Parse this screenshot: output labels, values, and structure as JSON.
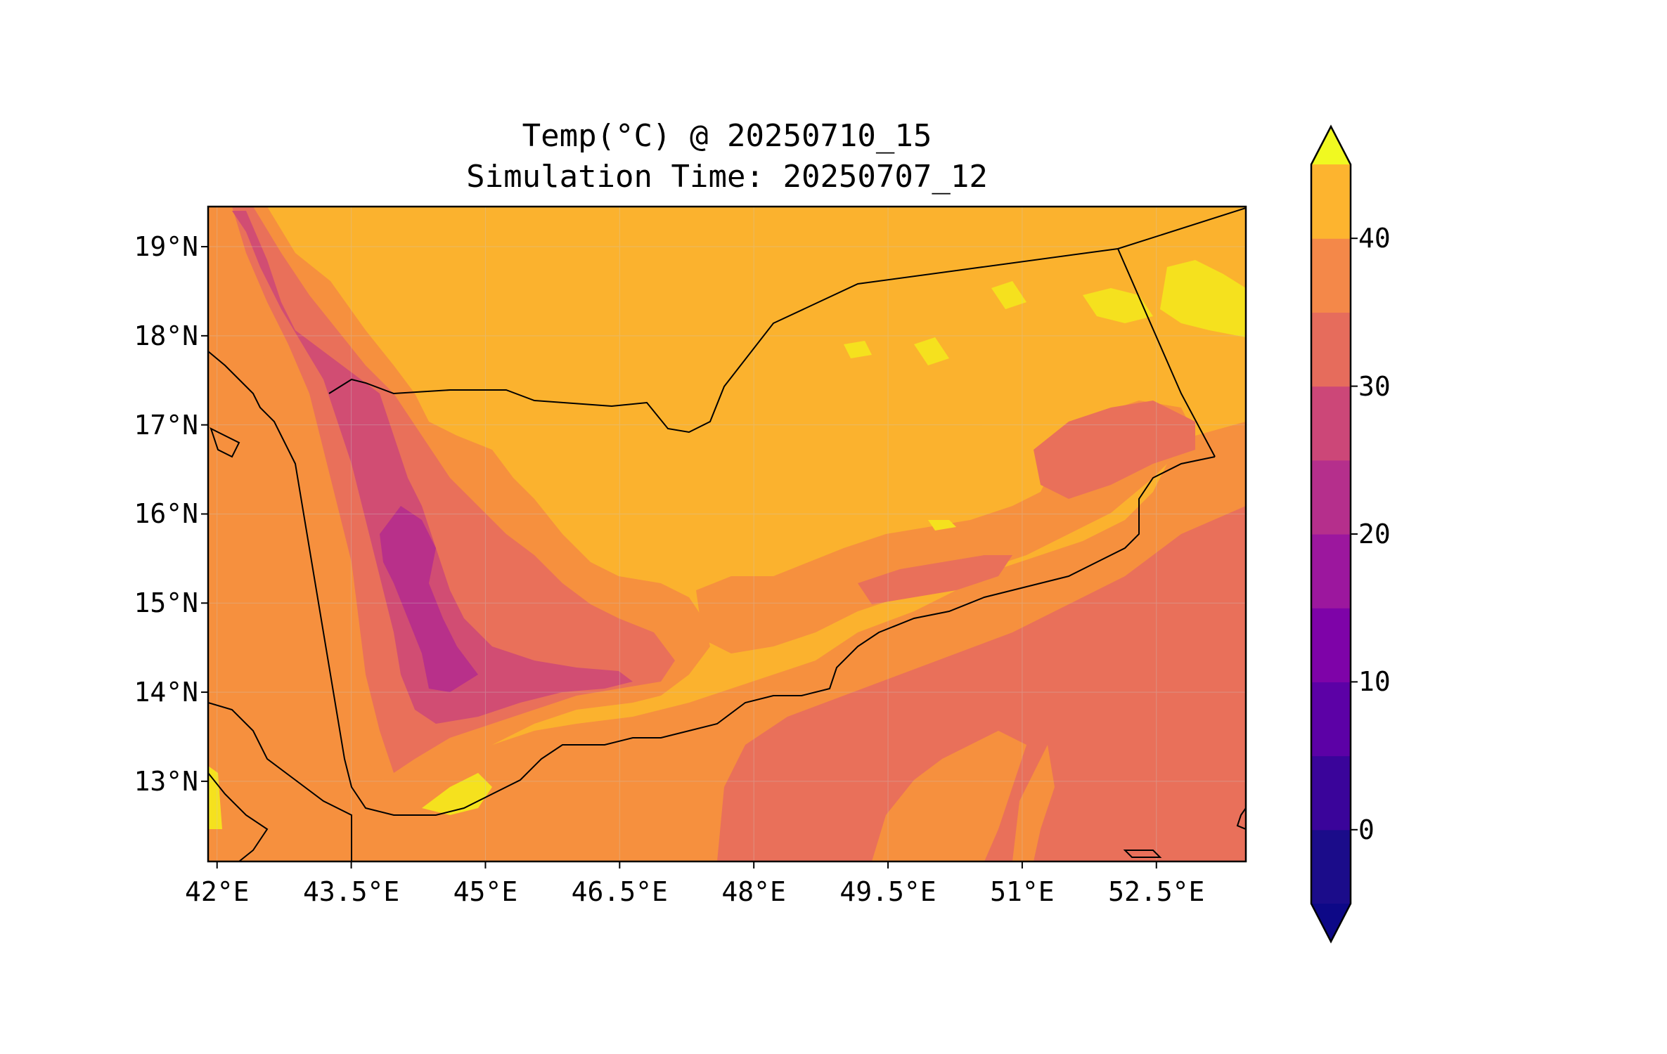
{
  "figure": {
    "title_line1": "Temp(°C) @ 20250710_15",
    "title_line2": "Simulation Time: 20250707_12"
  },
  "map": {
    "lon_range": [
      41.9,
      53.5
    ],
    "lat_range": [
      12.1,
      19.45
    ],
    "lat_ticks": [
      {
        "value": 19,
        "label": "19°N"
      },
      {
        "value": 18,
        "label": "18°N"
      },
      {
        "value": 17,
        "label": "17°N"
      },
      {
        "value": 16,
        "label": "16°N"
      },
      {
        "value": 15,
        "label": "15°N"
      },
      {
        "value": 14,
        "label": "14°N"
      },
      {
        "value": 13,
        "label": "13°N"
      }
    ],
    "lon_ticks": [
      {
        "value": 42,
        "label": "42°E"
      },
      {
        "value": 43.5,
        "label": "43.5°E"
      },
      {
        "value": 45,
        "label": "45°E"
      },
      {
        "value": 46.5,
        "label": "46.5°E"
      },
      {
        "value": 48,
        "label": "48°E"
      },
      {
        "value": 49.5,
        "label": "49.5°E"
      },
      {
        "value": 51,
        "label": "51°E"
      },
      {
        "value": 52.5,
        "label": "52.5°E"
      }
    ],
    "gridlines": true
  },
  "colorbar": {
    "levels": [
      -5,
      0,
      5,
      10,
      15,
      20,
      25,
      30,
      35,
      40,
      45
    ],
    "colors": [
      "#1b0c8a",
      "#3a049a",
      "#5c01a6",
      "#7e03a8",
      "#9c179e",
      "#b52f8c",
      "#cc4778",
      "#e66c5c",
      "#f48849",
      "#fdb42f",
      "#f0f921"
    ],
    "under_color": "#0d0887",
    "over_color": "#f0f921",
    "extend": "both",
    "tick_values": [
      0,
      10,
      20,
      30,
      40
    ],
    "tick_labels": [
      "0",
      "10",
      "20",
      "30",
      "40"
    ]
  },
  "palette": {
    "hot": "#f5e11e",
    "warm": "#fbb22e",
    "mild": "#f6903e",
    "cool": "#e9705a",
    "cold": "#d14d73",
    "colder": "#b8308a"
  }
}
